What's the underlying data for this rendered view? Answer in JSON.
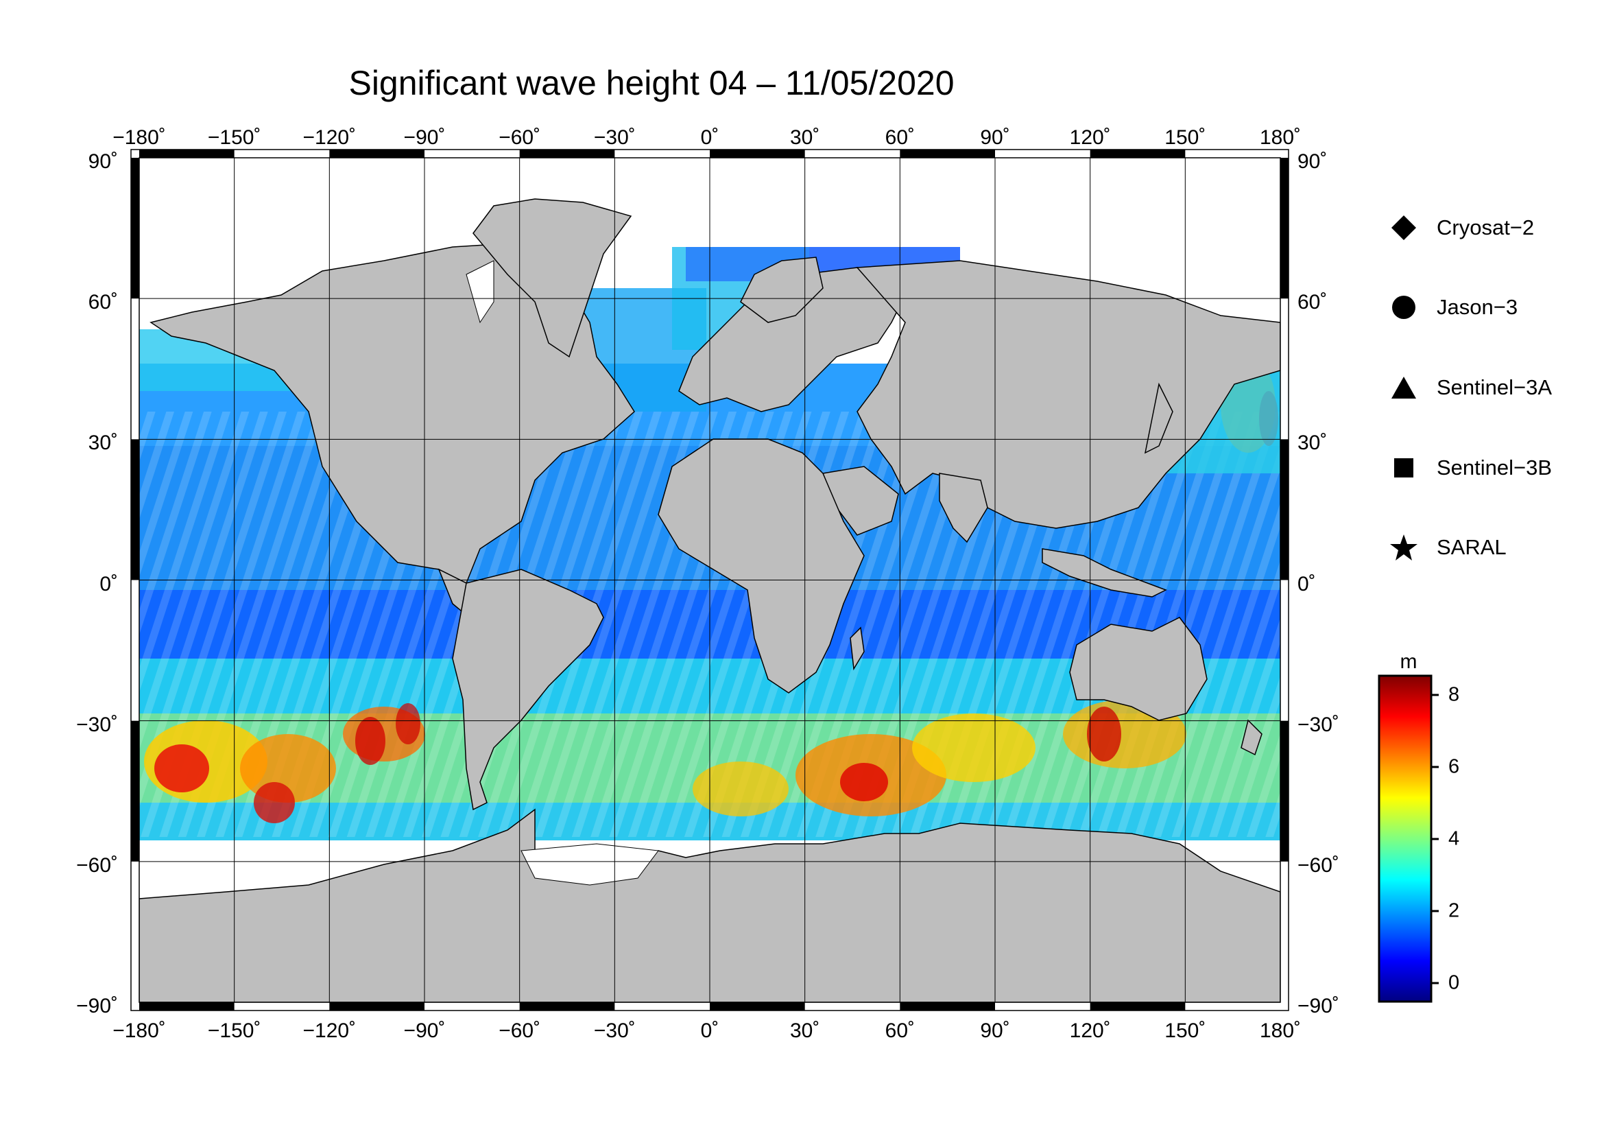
{
  "title": "Significant wave height 04 – 11/05/2020",
  "lon_labels": [
    "−180˚",
    "−150˚",
    "−120˚",
    "−90˚",
    "−60˚",
    "−30˚",
    "0˚",
    "30˚",
    "60˚",
    "90˚",
    "120˚",
    "150˚",
    "180˚"
  ],
  "lat_labels": [
    "90˚",
    "60˚",
    "30˚",
    "0˚",
    "−30˚",
    "−60˚",
    "−90˚"
  ],
  "legend": [
    {
      "label": "Cryosat−2",
      "icon": "diamond-icon"
    },
    {
      "label": "Jason−3",
      "icon": "circle-icon"
    },
    {
      "label": "Sentinel−3A",
      "icon": "triangle-icon"
    },
    {
      "label": "Sentinel−3B",
      "icon": "square-icon"
    },
    {
      "label": "SARAL",
      "icon": "star-icon"
    }
  ],
  "colorbar": {
    "unit": "m",
    "ticks": [
      "8",
      "6",
      "4",
      "2",
      "0"
    ],
    "colors": [
      "#000080",
      "#0000ff",
      "#0080ff",
      "#00ffff",
      "#80ff80",
      "#ffff00",
      "#ff8000",
      "#ff0000",
      "#800000"
    ]
  },
  "map": {
    "projection": "equirectangular",
    "lon_range": [
      -180,
      180
    ],
    "lat_range": [
      -90,
      90
    ],
    "land_color": "#bebebe",
    "ice_color": "#ffffff"
  }
}
